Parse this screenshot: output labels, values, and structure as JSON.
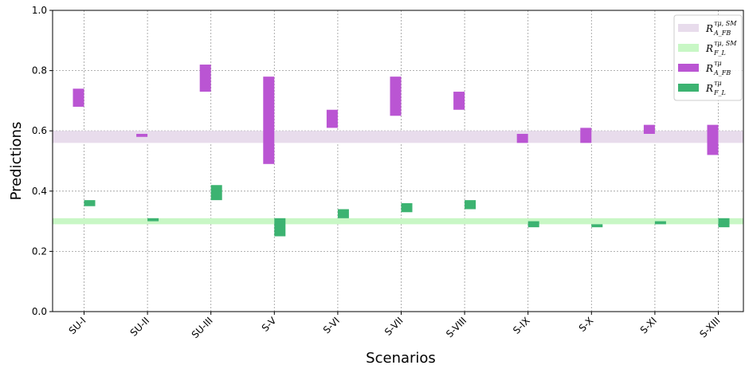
{
  "chart_data": {
    "type": "bar",
    "title": "",
    "xlabel": "Scenarios",
    "ylabel": "Predictions",
    "ylim": [
      0,
      1
    ],
    "yticks": [
      "0.0",
      "0.2",
      "0.4",
      "0.6",
      "0.8",
      "1.0"
    ],
    "grid": true,
    "legend_position": "top-right",
    "categories": [
      "SU-I",
      "SU-II",
      "SU-III",
      "S-V",
      "S-VI",
      "S-VII",
      "S-VIII",
      "S-IX",
      "S-X",
      "S-XI",
      "S-XIII"
    ],
    "bands": [
      {
        "legend_main": "R",
        "legend_sup": "τμ, SM",
        "legend_sub": "A_FB",
        "y_low": 0.56,
        "y_high": 0.6,
        "color": "#e8dcec"
      },
      {
        "legend_main": "R",
        "legend_sup": "τμ, SM",
        "legend_sub": "F_L",
        "y_low": 0.29,
        "y_high": 0.31,
        "color": "#c8f7c5"
      }
    ],
    "series": [
      {
        "legend_main": "R",
        "legend_sup": "τμ",
        "legend_sub": "A_FB",
        "color": "#ba55d3",
        "side": "left",
        "low": [
          0.68,
          0.58,
          0.73,
          0.49,
          0.61,
          0.65,
          0.67,
          0.56,
          0.56,
          0.59,
          0.52
        ],
        "high": [
          0.74,
          0.59,
          0.82,
          0.78,
          0.67,
          0.78,
          0.73,
          0.59,
          0.61,
          0.62,
          0.62
        ]
      },
      {
        "legend_main": "R",
        "legend_sup": "τμ",
        "legend_sub": "F_L",
        "color": "#3cb371",
        "side": "right",
        "low": [
          0.35,
          0.3,
          0.37,
          0.25,
          0.31,
          0.33,
          0.34,
          0.28,
          0.28,
          0.29,
          0.28
        ],
        "high": [
          0.37,
          0.31,
          0.42,
          0.31,
          0.34,
          0.36,
          0.37,
          0.3,
          0.29,
          0.3,
          0.31
        ]
      }
    ]
  }
}
